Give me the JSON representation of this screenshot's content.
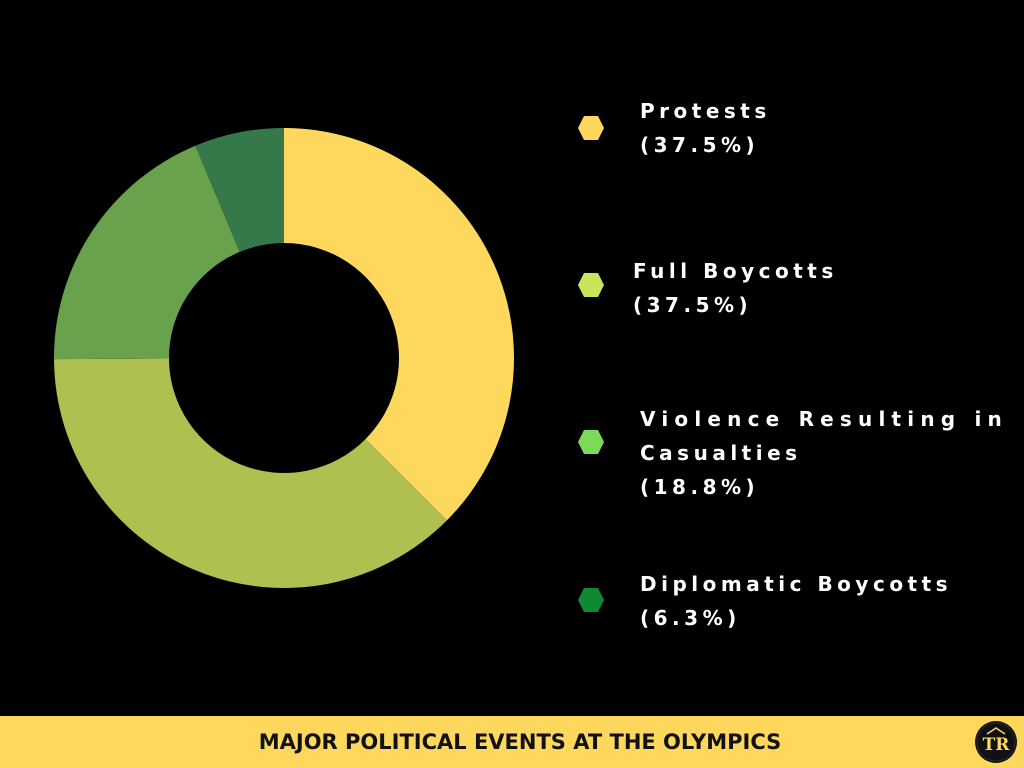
{
  "chart_data": {
    "type": "pie",
    "donut": true,
    "title": "MAJOR POLITICAL EVENTS AT THE OLYMPICS",
    "categories": [
      "Protests",
      "Full Boycotts",
      "Violence Resulting in Casualties",
      "Diplomatic Boycotts"
    ],
    "values": [
      37.5,
      37.5,
      18.8,
      6.3
    ],
    "value_labels": [
      "(37.5%)",
      "(37.5%)",
      "(18.8%)",
      "(6.3%)"
    ],
    "slice_colors": [
      "#fdd85d",
      "#b0c050",
      "#6aa14d",
      "#35784a"
    ],
    "legend_marker_colors": [
      "#fdd85d",
      "#c7e45a",
      "#7ed957",
      "#0f8a33"
    ],
    "legend_placement": "right"
  },
  "legend": [
    {
      "lines": [
        "Protests",
        "(37.5%)"
      ]
    },
    {
      "lines": [
        "Full Boycotts",
        "(37.5%)"
      ]
    },
    {
      "lines": [
        "Violence Resulting in",
        "Casualties",
        "(18.8%)"
      ]
    },
    {
      "lines": [
        "Diplomatic Boycotts",
        "(6.3%)"
      ]
    }
  ],
  "footer": {
    "title": "MAJOR POLITICAL EVENTS AT THE OLYMPICS",
    "background": "#fdd85d"
  },
  "logo": {
    "text": "TR",
    "icon": "tr-logo-icon"
  }
}
